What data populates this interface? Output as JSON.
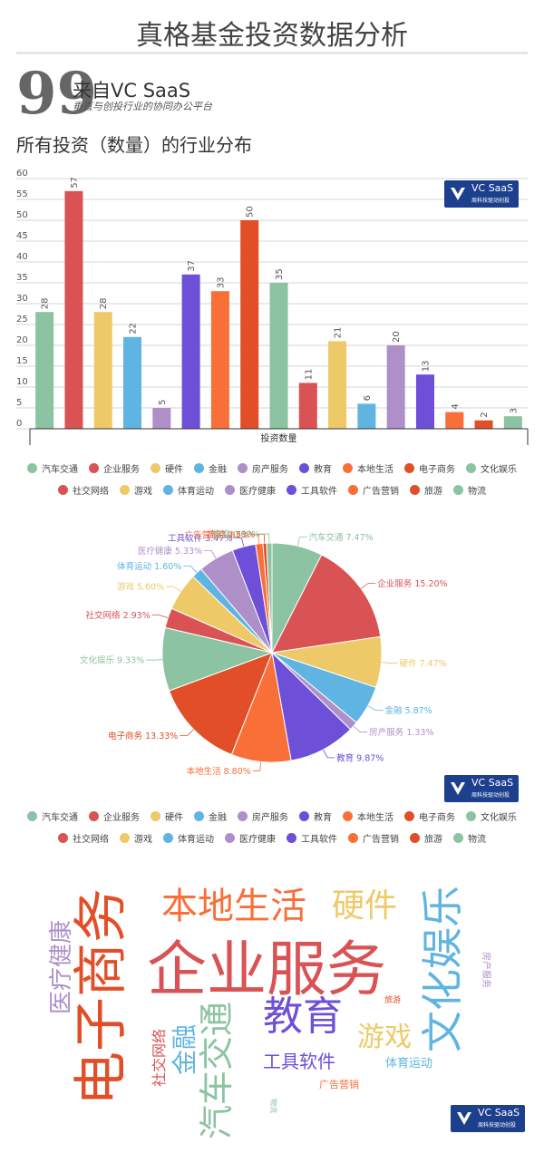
{
  "header": {
    "title": "真格基金投资数据分析",
    "quote_mark": "99",
    "source_main": "来自VC SaaS",
    "source_sub": "垂直与创投行业的协同办公平台",
    "section_title": "所有投资（数量）的行业分布"
  },
  "badge": {
    "text": "VC SaaS",
    "sub": "周科技驱动创投"
  },
  "colors": [
    "#8cc3a2",
    "#d95355",
    "#edc968",
    "#5fb4e2",
    "#ae8fc8",
    "#6d4fd8",
    "#f96f38",
    "#e14e27",
    "#8cc3a2",
    "#d95355",
    "#edc968",
    "#5fb4e2",
    "#ae8fc8",
    "#6d4fd8",
    "#f96f38",
    "#e14e27",
    "#8cc3a2"
  ],
  "legend": [
    "汽车交通",
    "企业服务",
    "硬件",
    "金融",
    "房产服务",
    "教育",
    "本地生活",
    "电子商务",
    "文化娱乐",
    "社交网络",
    "游戏",
    "体育运动",
    "医疗健康",
    "工具软件",
    "广告营销",
    "旅游",
    "物流"
  ],
  "chart_data": [
    {
      "type": "bar",
      "categories": [
        "汽车交通",
        "企业服务",
        "硬件",
        "金融",
        "房产服务",
        "教育",
        "本地生活",
        "电子商务",
        "文化娱乐",
        "社交网络",
        "游戏",
        "体育运动",
        "医疗健康",
        "工具软件",
        "广告营销",
        "旅游",
        "物流"
      ],
      "values": [
        28,
        57,
        28,
        22,
        5,
        37,
        33,
        50,
        35,
        11,
        21,
        6,
        20,
        13,
        4,
        2,
        3
      ],
      "xlabel": "投资数量",
      "ylim": [
        0,
        60
      ],
      "yticks": [
        0,
        5,
        10,
        15,
        20,
        25,
        30,
        35,
        40,
        45,
        50,
        55,
        60
      ],
      "grid": true,
      "legend_position": "bottom"
    },
    {
      "type": "pie",
      "labels": [
        "汽车交通",
        "企业服务",
        "硬件",
        "金融",
        "房产服务",
        "教育",
        "本地生活",
        "电子商务",
        "文化娱乐",
        "社交网络",
        "游戏",
        "体育运动",
        "医疗健康",
        "工具软件",
        "广告营销",
        "旅游",
        "物流"
      ],
      "values": [
        7.47,
        15.2,
        7.47,
        5.87,
        1.33,
        9.87,
        8.8,
        13.33,
        9.33,
        2.93,
        5.6,
        1.6,
        5.33,
        3.47,
        1.07,
        0.53,
        0.8
      ],
      "slice_labels": [
        "汽车交通 7.47%",
        "企业服务 15.20%",
        "硬件 7.47%",
        "金融 5.87%",
        "房产服务 1.33%",
        "教育 9.87%",
        "本地生活 8.80%",
        "电子商务 13.33%",
        "文化娱乐 9.33%",
        "社交网络 2.93%",
        "游戏 5.60%",
        "体育运动 1.60%",
        "医疗健康 5.33%",
        "工具软件 3.47%",
        "广告营销 1.07%",
        "旅游 0.53%",
        "物流 0.80%"
      ],
      "legend_position": "bottom"
    }
  ],
  "word_cloud": [
    {
      "text": "企业服务",
      "color": "#d95355"
    },
    {
      "text": "电子商务",
      "color": "#e14e27"
    },
    {
      "text": "文化娱乐",
      "color": "#5fb4e2"
    },
    {
      "text": "本地生活",
      "color": "#f96f38"
    },
    {
      "text": "硬件",
      "color": "#edc968"
    },
    {
      "text": "教育",
      "color": "#6d4fd8"
    },
    {
      "text": "汽车交通",
      "color": "#8cc3a2"
    },
    {
      "text": "医疗健康",
      "color": "#ae8fc8"
    },
    {
      "text": "游戏",
      "color": "#edc968"
    },
    {
      "text": "金融",
      "color": "#5fb4e2"
    },
    {
      "text": "工具软件",
      "color": "#6d4fd8"
    },
    {
      "text": "社交网络",
      "color": "#d95355"
    },
    {
      "text": "体育运动",
      "color": "#5fb4e2"
    },
    {
      "text": "广告营销",
      "color": "#f96f38"
    },
    {
      "text": "房产服务",
      "color": "#ae8fc8"
    },
    {
      "text": "旅游",
      "color": "#e14e27"
    },
    {
      "text": "物流",
      "color": "#8cc3a2"
    }
  ]
}
